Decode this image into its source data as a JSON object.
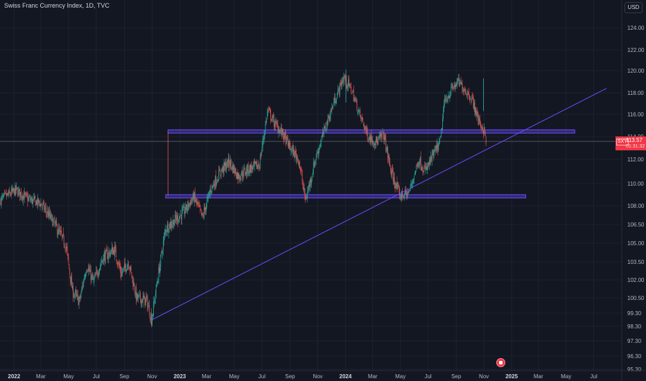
{
  "header": {
    "title": "Swiss Franc Currency Index, 1D, TVC",
    "currency": "USD"
  },
  "price_label": {
    "symbol": "SXY",
    "value": "113.57",
    "countdown": "01:31:32"
  },
  "colors": {
    "background": "#131722",
    "up": "#26a69a",
    "down": "#ef5350",
    "lines": "#6a4dff",
    "price": "#f23645"
  },
  "chart_data": {
    "type": "candlestick",
    "ylim": [
      95.3,
      125.5
    ],
    "y_ticks": [
      "95.30",
      "96.30",
      "97.30",
      "98.30",
      "99.30",
      "100.50",
      "102.00",
      "103.50",
      "105.00",
      "106.50",
      "108.00",
      "110.00",
      "112.00",
      "114.00",
      "116.00",
      "118.00",
      "120.00",
      "122.00",
      "124.00"
    ],
    "x_ticks": [
      "2022",
      "Mar",
      "May",
      "Jul",
      "Sep",
      "Nov",
      "2023",
      "Mar",
      "May",
      "Jul",
      "Sep",
      "Nov",
      "2024",
      "Mar",
      "May",
      "Jul",
      "Sep",
      "Nov",
      "2025",
      "Mar",
      "May",
      "Jul"
    ],
    "bold_x_ticks": [
      "2022",
      "2023",
      "2024",
      "2025"
    ],
    "series": [
      {
        "values": [
          {
            "t": "2021-12-01",
            "v": 108.5
          },
          {
            "t": "2022-01-05",
            "v": 109.4
          },
          {
            "t": "2022-02-01",
            "v": 108.6
          },
          {
            "t": "2022-03-01",
            "v": 108.2
          },
          {
            "t": "2022-04-01",
            "v": 106.5
          },
          {
            "t": "2022-04-25",
            "v": 104.8
          },
          {
            "t": "2022-05-10",
            "v": 101.0
          },
          {
            "t": "2022-05-25",
            "v": 100.2
          },
          {
            "t": "2022-06-10",
            "v": 103.2
          },
          {
            "t": "2022-06-25",
            "v": 101.8
          },
          {
            "t": "2022-07-15",
            "v": 103.8
          },
          {
            "t": "2022-08-10",
            "v": 104.5
          },
          {
            "t": "2022-08-25",
            "v": 102.5
          },
          {
            "t": "2022-09-10",
            "v": 103.5
          },
          {
            "t": "2022-09-28",
            "v": 100.5
          },
          {
            "t": "2022-10-20",
            "v": 100.3
          },
          {
            "t": "2022-10-31",
            "v": 98.8
          },
          {
            "t": "2022-11-15",
            "v": 102.5
          },
          {
            "t": "2022-12-01",
            "v": 106.2
          },
          {
            "t": "2022-12-20",
            "v": 106.8
          },
          {
            "t": "2023-01-10",
            "v": 107.5
          },
          {
            "t": "2023-02-01",
            "v": 108.8
          },
          {
            "t": "2023-02-20",
            "v": 107.0
          },
          {
            "t": "2023-03-10",
            "v": 109.5
          },
          {
            "t": "2023-04-01",
            "v": 111.0
          },
          {
            "t": "2023-04-20",
            "v": 111.8
          },
          {
            "t": "2023-05-10",
            "v": 110.6
          },
          {
            "t": "2023-06-01",
            "v": 111.2
          },
          {
            "t": "2023-06-25",
            "v": 111.5
          },
          {
            "t": "2023-07-14",
            "v": 116.4
          },
          {
            "t": "2023-07-28",
            "v": 115.2
          },
          {
            "t": "2023-08-15",
            "v": 114.3
          },
          {
            "t": "2023-09-01",
            "v": 113.0
          },
          {
            "t": "2023-09-20",
            "v": 112.0
          },
          {
            "t": "2023-10-05",
            "v": 108.5
          },
          {
            "t": "2023-10-25",
            "v": 111.8
          },
          {
            "t": "2023-11-15",
            "v": 114.5
          },
          {
            "t": "2023-12-10",
            "v": 117.5
          },
          {
            "t": "2023-12-28",
            "v": 119.4
          },
          {
            "t": "2024-01-15",
            "v": 118.2
          },
          {
            "t": "2024-02-01",
            "v": 116.0
          },
          {
            "t": "2024-02-20",
            "v": 114.0
          },
          {
            "t": "2024-03-10",
            "v": 113.5
          },
          {
            "t": "2024-03-25",
            "v": 114.2
          },
          {
            "t": "2024-04-10",
            "v": 111.0
          },
          {
            "t": "2024-04-30",
            "v": 108.9
          },
          {
            "t": "2024-05-20",
            "v": 109.2
          },
          {
            "t": "2024-06-10",
            "v": 112.0
          },
          {
            "t": "2024-06-25",
            "v": 111.0
          },
          {
            "t": "2024-07-10",
            "v": 112.2
          },
          {
            "t": "2024-07-28",
            "v": 113.5
          },
          {
            "t": "2024-08-05",
            "v": 117.0
          },
          {
            "t": "2024-08-20",
            "v": 118.2
          },
          {
            "t": "2024-09-05",
            "v": 119.0
          },
          {
            "t": "2024-09-20",
            "v": 118.3
          },
          {
            "t": "2024-10-05",
            "v": 117.5
          },
          {
            "t": "2024-10-20",
            "v": 115.5
          },
          {
            "t": "2024-11-01",
            "v": 114.5
          },
          {
            "t": "2024-11-06",
            "v": 113.6
          }
        ]
      }
    ],
    "horizontal_zones": [
      {
        "from": "2022-12-06",
        "to": "2025-05-20",
        "y_top": 114.6,
        "y_bottom": 114.3
      },
      {
        "from": "2022-12-01",
        "to": "2025-02-01",
        "y_top": 109.0,
        "y_bottom": 108.7
      }
    ],
    "trendline": {
      "from": {
        "t": "2022-11-01",
        "v": 98.8
      },
      "to": {
        "t": "2025-07-29",
        "v": 118.4
      }
    },
    "price_line": 113.57,
    "highs": [
      {
        "t": "2024-01-02",
        "v": 120.1
      },
      {
        "t": "2024-10-31",
        "v": 119.3
      }
    ]
  }
}
